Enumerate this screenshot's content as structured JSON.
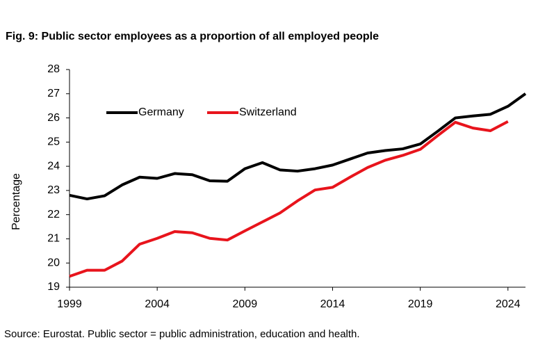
{
  "chart_data": {
    "type": "line",
    "title": "Fig. 9: Public sector employees as a proportion of all employed people",
    "y_label": "Percentage",
    "source": "Source: Eurostat. Public sector = public administration, education and health.",
    "x": [
      1999,
      2000,
      2001,
      2002,
      2003,
      2004,
      2005,
      2006,
      2007,
      2008,
      2009,
      2010,
      2011,
      2012,
      2013,
      2014,
      2015,
      2016,
      2017,
      2018,
      2019,
      2020,
      2021,
      2022,
      2023,
      2024,
      2025
    ],
    "series": [
      {
        "name": "Germany",
        "color": "#000000",
        "values": [
          22.8,
          22.65,
          22.78,
          23.23,
          23.55,
          23.5,
          23.7,
          23.65,
          23.4,
          23.38,
          23.9,
          24.15,
          23.85,
          23.8,
          23.9,
          24.05,
          24.3,
          24.55,
          24.65,
          24.72,
          24.92,
          25.45,
          26.0,
          26.08,
          26.15,
          26.48,
          27.0
        ]
      },
      {
        "name": "Switzerland",
        "color": "#e8141c",
        "values": [
          19.45,
          19.7,
          19.7,
          20.08,
          20.78,
          21.02,
          21.3,
          21.25,
          21.02,
          20.95,
          21.33,
          21.7,
          22.07,
          22.57,
          23.02,
          23.13,
          23.55,
          23.95,
          24.25,
          24.45,
          24.7,
          25.27,
          25.82,
          25.58,
          25.47,
          25.85,
          null
        ]
      }
    ],
    "xlim": [
      1999,
      2025
    ],
    "xticks": [
      1999,
      2004,
      2009,
      2014,
      2019,
      2024
    ],
    "ylim": [
      19,
      28
    ],
    "yticks": [
      19,
      20,
      21,
      22,
      23,
      24,
      25,
      26,
      27,
      28
    ],
    "grid": false
  }
}
